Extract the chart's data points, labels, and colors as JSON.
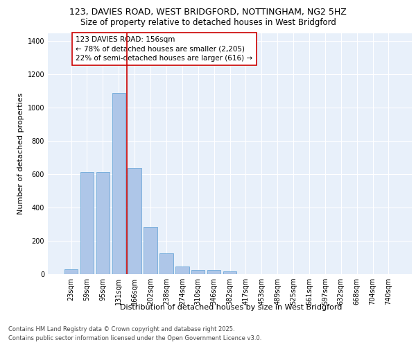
{
  "title_line1": "123, DAVIES ROAD, WEST BRIDGFORD, NOTTINGHAM, NG2 5HZ",
  "title_line2": "Size of property relative to detached houses in West Bridgford",
  "xlabel": "Distribution of detached houses by size in West Bridgford",
  "ylabel": "Number of detached properties",
  "categories": [
    "23sqm",
    "59sqm",
    "95sqm",
    "131sqm",
    "166sqm",
    "202sqm",
    "238sqm",
    "274sqm",
    "310sqm",
    "346sqm",
    "382sqm",
    "417sqm",
    "453sqm",
    "489sqm",
    "525sqm",
    "561sqm",
    "597sqm",
    "632sqm",
    "668sqm",
    "704sqm",
    "740sqm"
  ],
  "values": [
    30,
    615,
    615,
    1090,
    640,
    285,
    125,
    45,
    25,
    25,
    15,
    0,
    0,
    0,
    0,
    0,
    0,
    0,
    0,
    0,
    0
  ],
  "bar_color": "#aec6e8",
  "bar_edge_color": "#5a9fd4",
  "vline_x_index": 3.5,
  "vline_color": "#cc0000",
  "annotation_text": "123 DAVIES ROAD: 156sqm\n← 78% of detached houses are smaller (2,205)\n22% of semi-detached houses are larger (616) →",
  "annotation_box_color": "#cc0000",
  "ylim": [
    0,
    1450
  ],
  "yticks": [
    0,
    200,
    400,
    600,
    800,
    1000,
    1200,
    1400
  ],
  "background_color": "#e8f0fa",
  "grid_color": "#ffffff",
  "footer_line1": "Contains HM Land Registry data © Crown copyright and database right 2025.",
  "footer_line2": "Contains public sector information licensed under the Open Government Licence v3.0.",
  "title1_fontsize": 9,
  "title2_fontsize": 8.5,
  "axis_label_fontsize": 8,
  "tick_fontsize": 7,
  "annotation_fontsize": 7.5,
  "footer_fontsize": 6
}
